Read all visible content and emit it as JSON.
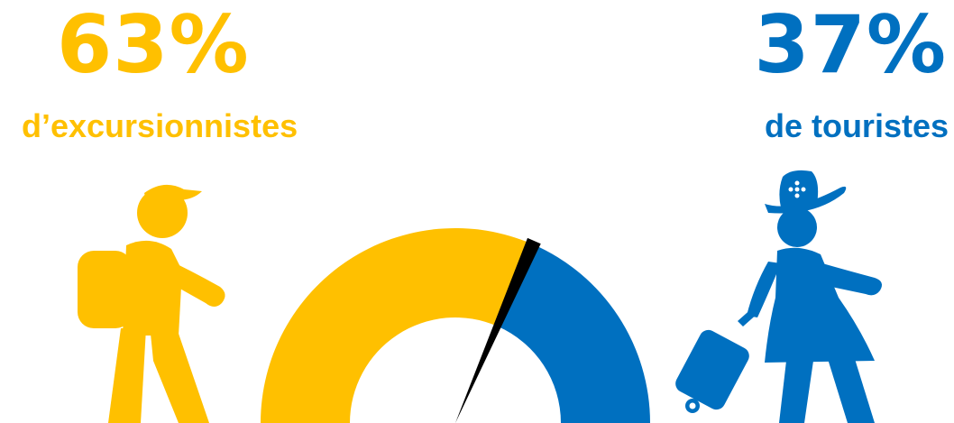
{
  "left_group": {
    "percent_text": "63%",
    "caption": "d’excursionnistes",
    "icon": "hiker-with-backpack-icon",
    "color": "#FFC000"
  },
  "right_group": {
    "percent_text": "37%",
    "caption": "de touristes",
    "icon": "traveler-with-suitcase-icon",
    "color": "#0070C0"
  },
  "chart_data": {
    "type": "pie",
    "style": "half-donut-gauge",
    "series": [
      {
        "value": 63,
        "color": "#FFC000"
      },
      {
        "value": 37,
        "color": "#0070C0"
      }
    ],
    "needle_color": "#000000"
  }
}
